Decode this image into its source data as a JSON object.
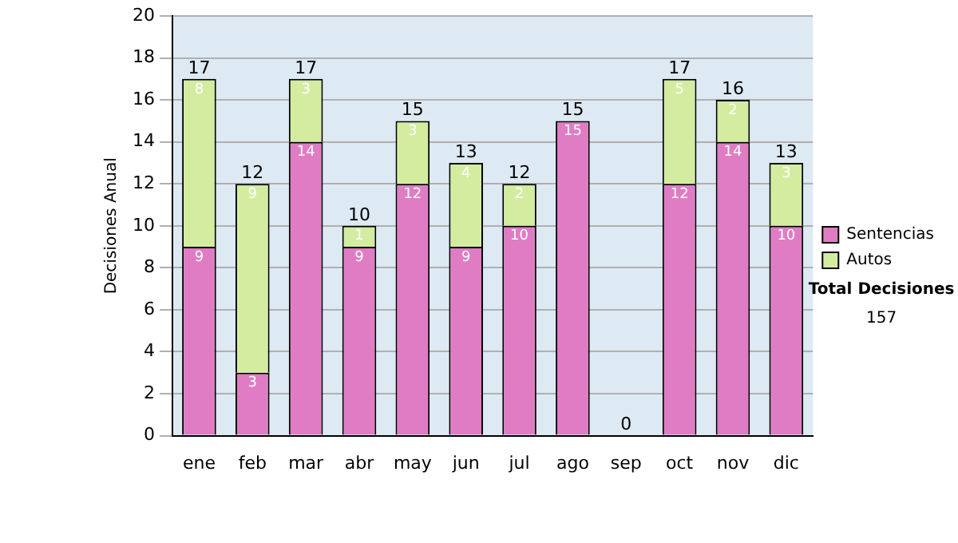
{
  "chart_data": {
    "type": "bar",
    "stacked": true,
    "ylabel": "Decisiones Anual",
    "categories": [
      "ene",
      "feb",
      "mar",
      "abr",
      "may",
      "jun",
      "jul",
      "ago",
      "sep",
      "oct",
      "nov",
      "dic"
    ],
    "series": [
      {
        "name": "Sentencias",
        "color": "#e07cc4",
        "values": [
          9,
          3,
          14,
          9,
          12,
          9,
          10,
          15,
          0,
          12,
          14,
          10
        ],
        "value_labels": [
          "9",
          "3",
          "14",
          "9",
          "12",
          "9",
          "10",
          "15",
          null,
          "12",
          "14",
          "10"
        ]
      },
      {
        "name": "Autos",
        "color": "#d4eca0",
        "values": [
          8,
          9,
          3,
          1,
          3,
          4,
          2,
          0,
          0,
          5,
          2,
          3
        ],
        "value_labels": [
          "8",
          "9",
          "3",
          "1",
          "3",
          "4",
          "2",
          null,
          null,
          "5",
          "2",
          "3"
        ]
      }
    ],
    "totals": [
      "17",
      "12",
      "17",
      "10",
      "15",
      "13",
      "12",
      "15",
      "0",
      "17",
      "16",
      "13"
    ],
    "ylim": [
      0,
      20
    ],
    "yticks": [
      0,
      2,
      4,
      6,
      8,
      10,
      12,
      14,
      16,
      18,
      20
    ],
    "grid": "y",
    "legend": "right",
    "annotations": [
      "Total Decisiones",
      "157"
    ]
  }
}
